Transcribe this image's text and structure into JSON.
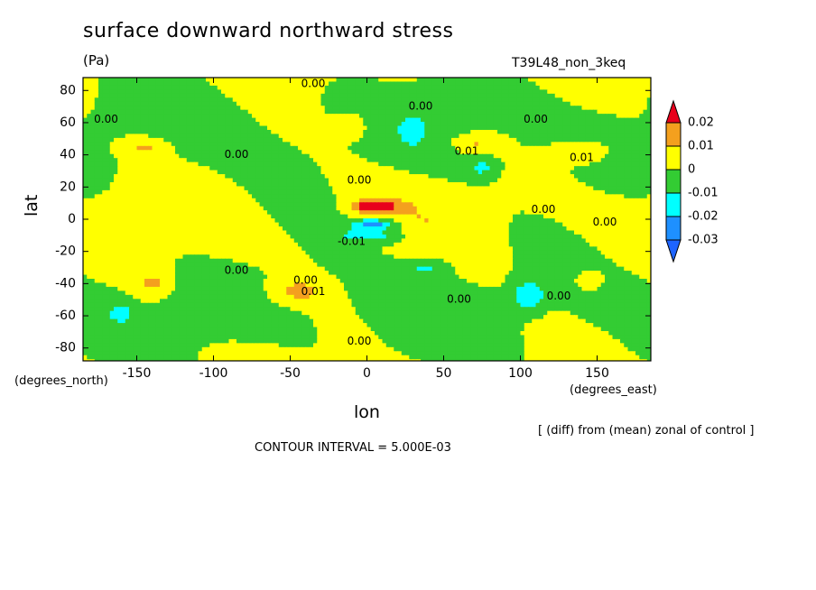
{
  "chart_data": {
    "type": "heatmap",
    "title": "surface downward northward stress",
    "units": "(Pa)",
    "run_label": "T39L48_non_3keq",
    "xlabel": "lon",
    "ylabel": "lat",
    "x_units": "(degrees_east)",
    "y_units": "(degrees_north)",
    "xlim": [
      -185,
      185
    ],
    "ylim": [
      -88,
      88
    ],
    "x_ticks": [
      "-150",
      "-100",
      "-50",
      "0",
      "50",
      "100",
      "150"
    ],
    "x_tick_values": [
      -150,
      -100,
      -50,
      0,
      50,
      100,
      150
    ],
    "y_ticks": [
      "80",
      "60",
      "40",
      "20",
      "0",
      "-20",
      "-40",
      "-60",
      "-80"
    ],
    "y_tick_values": [
      80,
      60,
      40,
      20,
      0,
      -20,
      -40,
      -60,
      -80
    ],
    "colorbar": {
      "labels": [
        "0.02",
        "0.01",
        "0",
        "-0.01",
        "-0.02",
        "-0.03"
      ],
      "levels": [
        0.02,
        0.01,
        0,
        -0.01,
        -0.02,
        -0.03
      ],
      "colors": [
        "#e8001c",
        "#f4a01e",
        "#ffff00",
        "#33cc33",
        "#00ffff",
        "#1e90ff",
        "#1e64ff"
      ]
    },
    "contour_labels": [
      {
        "text": "0.00",
        "lon": -35,
        "lat": 84
      },
      {
        "text": "0.00",
        "lon": 35,
        "lat": 70
      },
      {
        "text": "0.00",
        "lon": -170,
        "lat": 62
      },
      {
        "text": "0.00",
        "lon": -85,
        "lat": 40
      },
      {
        "text": "0.00",
        "lon": -5,
        "lat": 24
      },
      {
        "text": "0.00",
        "lon": 110,
        "lat": 62
      },
      {
        "text": "0.01",
        "lon": 65,
        "lat": 42
      },
      {
        "text": "0.01",
        "lon": 140,
        "lat": 38
      },
      {
        "text": "0.00",
        "lon": 115,
        "lat": 6
      },
      {
        "text": "0.00",
        "lon": 155,
        "lat": -2
      },
      {
        "text": "-0.01",
        "lon": -10,
        "lat": -14
      },
      {
        "text": "0.00",
        "lon": -85,
        "lat": -32
      },
      {
        "text": "0.00",
        "lon": -40,
        "lat": -38
      },
      {
        "text": "0.01",
        "lon": -35,
        "lat": -45
      },
      {
        "text": "0.00",
        "lon": 60,
        "lat": -50
      },
      {
        "text": "0.00",
        "lon": 125,
        "lat": -48
      },
      {
        "text": "0.00",
        "lon": -5,
        "lat": -76
      }
    ],
    "features": [
      {
        "lon": 5,
        "lat": 8,
        "value": 0.028,
        "lon_width": 14,
        "lat_width": 4
      },
      {
        "lon": 5,
        "lat": -3,
        "value": -0.028,
        "lon_width": 14,
        "lat_width": 3
      },
      {
        "lon": 5,
        "lat": -10,
        "value": -0.015,
        "lon_width": 25,
        "lat_width": 5
      },
      {
        "lon": -145,
        "lat": 45,
        "value": 0.012,
        "lon_width": 15,
        "lat_width": 6
      },
      {
        "lon": -10,
        "lat": 58,
        "value": 0.012,
        "lon_width": 10,
        "lat_width": 8
      },
      {
        "lon": 70,
        "lat": 47,
        "value": 0.012,
        "lon_width": 15,
        "lat_width": 6
      },
      {
        "lon": 140,
        "lat": 42,
        "value": 0.013,
        "lon_width": 18,
        "lat_width": 7
      },
      {
        "lon": -140,
        "lat": -40,
        "value": 0.012,
        "lon_width": 13,
        "lat_width": 9
      },
      {
        "lon": -45,
        "lat": -45,
        "value": 0.013,
        "lon_width": 18,
        "lat_width": 8
      },
      {
        "lon": 145,
        "lat": -38,
        "value": 0.011,
        "lon_width": 10,
        "lat_width": 7
      },
      {
        "lon": 105,
        "lat": -48,
        "value": -0.018,
        "lon_width": 11,
        "lat_width": 10
      },
      {
        "lon": 75,
        "lat": 32,
        "value": -0.012,
        "lon_width": 9,
        "lat_width": 6
      },
      {
        "lon": 30,
        "lat": 55,
        "value": -0.01,
        "lon_width": 7,
        "lat_width": 8
      },
      {
        "lon": 40,
        "lat": -30,
        "value": -0.012,
        "lon_width": 14,
        "lat_width": 6
      },
      {
        "lon": -160,
        "lat": -58,
        "value": -0.01,
        "lon_width": 8,
        "lat_width": 6
      }
    ]
  },
  "annotations": {
    "note": "[ (diff) from (mean) zonal of control ]",
    "contour_interval": "CONTOUR INTERVAL = 5.000E-03"
  }
}
